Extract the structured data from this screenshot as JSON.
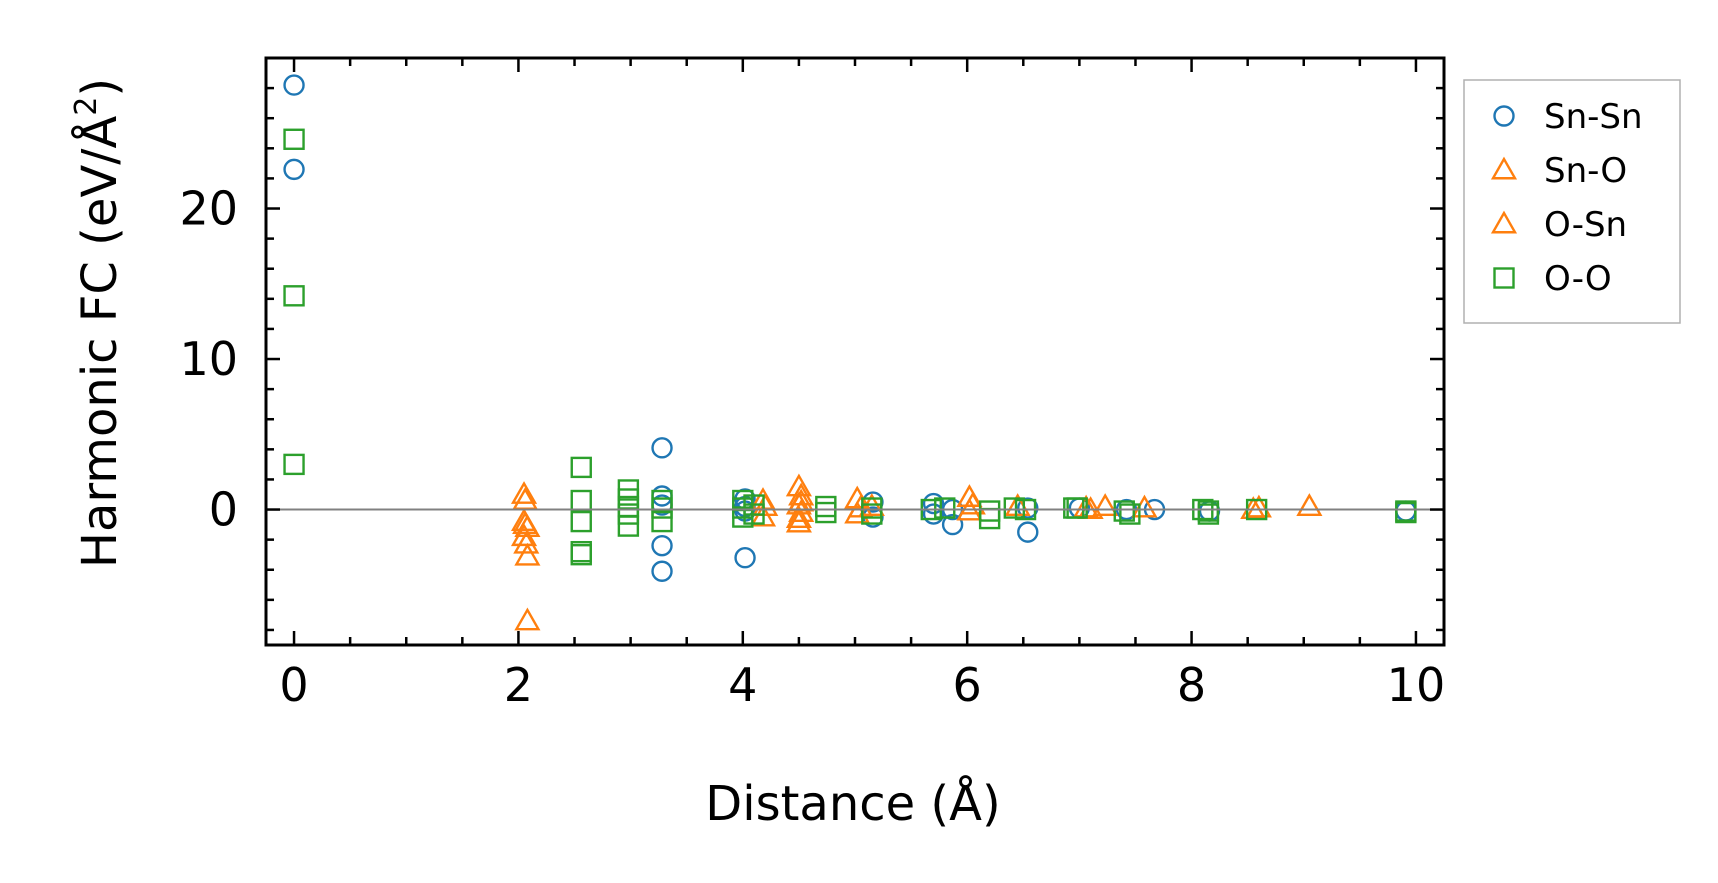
{
  "chart_data": {
    "type": "scatter",
    "xlabel": "Distance (Å)",
    "ylabel": "Harmonic FC (eV/Å²)",
    "ylabel_main": "Harmonic FC (eV/Å",
    "ylabel_sup": "2",
    "ylabel_close": ")",
    "xlim": [
      -0.25,
      10.25
    ],
    "ylim": [
      -9,
      30
    ],
    "xticks": [
      0,
      2,
      4,
      6,
      8,
      10
    ],
    "yticks": [
      0,
      10,
      20
    ],
    "xtick_labels": [
      "0",
      "2",
      "4",
      "6",
      "8",
      "10"
    ],
    "ytick_labels": [
      "0",
      "10",
      "20"
    ],
    "zero_line": true,
    "legend_position": "outside-right-top",
    "colors": {
      "blue": "#1f77b4",
      "orange": "#ff7f0e",
      "green": "#2ca02c",
      "zero_line": "#808080"
    },
    "series": [
      {
        "name": "Sn-Sn",
        "marker": "circle",
        "color": "#1f77b4",
        "points": [
          [
            0,
            28.2
          ],
          [
            0,
            22.6
          ],
          [
            3.28,
            4.1
          ],
          [
            3.28,
            0.9
          ],
          [
            3.28,
            0.3
          ],
          [
            3.28,
            -2.4
          ],
          [
            3.28,
            -4.1
          ],
          [
            4.02,
            0.7
          ],
          [
            4.02,
            0.2
          ],
          [
            4.02,
            -0.1
          ],
          [
            4.02,
            -3.2
          ],
          [
            5.16,
            0.5
          ],
          [
            5.16,
            -0.5
          ],
          [
            5.7,
            0.4
          ],
          [
            5.7,
            -0.3
          ],
          [
            5.87,
            0.0
          ],
          [
            5.87,
            -1.0
          ],
          [
            6.54,
            0.1
          ],
          [
            6.54,
            -1.5
          ],
          [
            7.0,
            0.1
          ],
          [
            7.42,
            0.0
          ],
          [
            7.67,
            0.0
          ],
          [
            8.16,
            -0.1
          ],
          [
            9.91,
            -0.1
          ]
        ]
      },
      {
        "name": "Sn-O",
        "marker": "triangle",
        "color": "#ff7f0e",
        "points": [
          [
            2.05,
            1.0
          ],
          [
            2.05,
            -0.8
          ],
          [
            2.08,
            -1.2
          ],
          [
            2.05,
            -1.8
          ],
          [
            2.07,
            -2.3
          ],
          [
            2.08,
            -3.1
          ],
          [
            2.08,
            -7.4
          ],
          [
            4.18,
            0.6
          ],
          [
            4.18,
            -0.5
          ],
          [
            4.5,
            1.5
          ],
          [
            4.52,
            0.9
          ],
          [
            4.5,
            0.3
          ],
          [
            4.52,
            -0.2
          ],
          [
            4.5,
            -0.6
          ],
          [
            4.5,
            -0.9
          ],
          [
            5.02,
            0.7
          ],
          [
            5.02,
            -0.3
          ],
          [
            5.15,
            0.2
          ],
          [
            6.02,
            0.8
          ],
          [
            6.02,
            -0.1
          ],
          [
            6.45,
            0.2
          ],
          [
            7.06,
            0.1
          ],
          [
            7.23,
            0.2
          ],
          [
            7.58,
            0.1
          ],
          [
            8.6,
            0.1
          ],
          [
            9.05,
            0.2
          ]
        ]
      },
      {
        "name": "O-Sn",
        "marker": "triangle",
        "color": "#ff7f0e",
        "points": [
          [
            2.06,
            0.6
          ],
          [
            2.06,
            -1.0
          ],
          [
            4.2,
            0.2
          ],
          [
            4.52,
            0.5
          ],
          [
            5.05,
            0.1
          ],
          [
            6.05,
            0.3
          ],
          [
            7.1,
            0.0
          ],
          [
            8.55,
            0.0
          ]
        ]
      },
      {
        "name": "O-O",
        "marker": "square",
        "color": "#2ca02c",
        "points": [
          [
            0,
            24.6
          ],
          [
            0,
            14.2
          ],
          [
            0,
            3.0
          ],
          [
            2.56,
            2.8
          ],
          [
            2.56,
            0.6
          ],
          [
            2.56,
            -0.8
          ],
          [
            2.56,
            -2.8
          ],
          [
            2.56,
            -3.0
          ],
          [
            2.98,
            1.3
          ],
          [
            2.98,
            0.7
          ],
          [
            2.98,
            0.2
          ],
          [
            2.98,
            -0.3
          ],
          [
            2.98,
            -1.1
          ],
          [
            3.28,
            0.6
          ],
          [
            3.28,
            0.1
          ],
          [
            3.28,
            -0.8
          ],
          [
            4.0,
            0.6
          ],
          [
            4.0,
            0.1
          ],
          [
            4.0,
            -0.5
          ],
          [
            4.1,
            0.3
          ],
          [
            4.1,
            -0.3
          ],
          [
            4.74,
            0.2
          ],
          [
            4.74,
            -0.2
          ],
          [
            5.15,
            0.1
          ],
          [
            5.15,
            -0.3
          ],
          [
            5.68,
            0.0
          ],
          [
            5.8,
            0.1
          ],
          [
            6.2,
            -0.1
          ],
          [
            6.2,
            -0.6
          ],
          [
            6.42,
            0.1
          ],
          [
            6.52,
            0.0
          ],
          [
            6.95,
            0.1
          ],
          [
            6.98,
            0.1
          ],
          [
            7.4,
            -0.1
          ],
          [
            7.45,
            -0.3
          ],
          [
            8.1,
            0.0
          ],
          [
            8.15,
            -0.1
          ],
          [
            8.15,
            -0.3
          ],
          [
            8.58,
            0.0
          ],
          [
            9.91,
            -0.1
          ],
          [
            9.91,
            -0.2
          ]
        ]
      }
    ]
  }
}
